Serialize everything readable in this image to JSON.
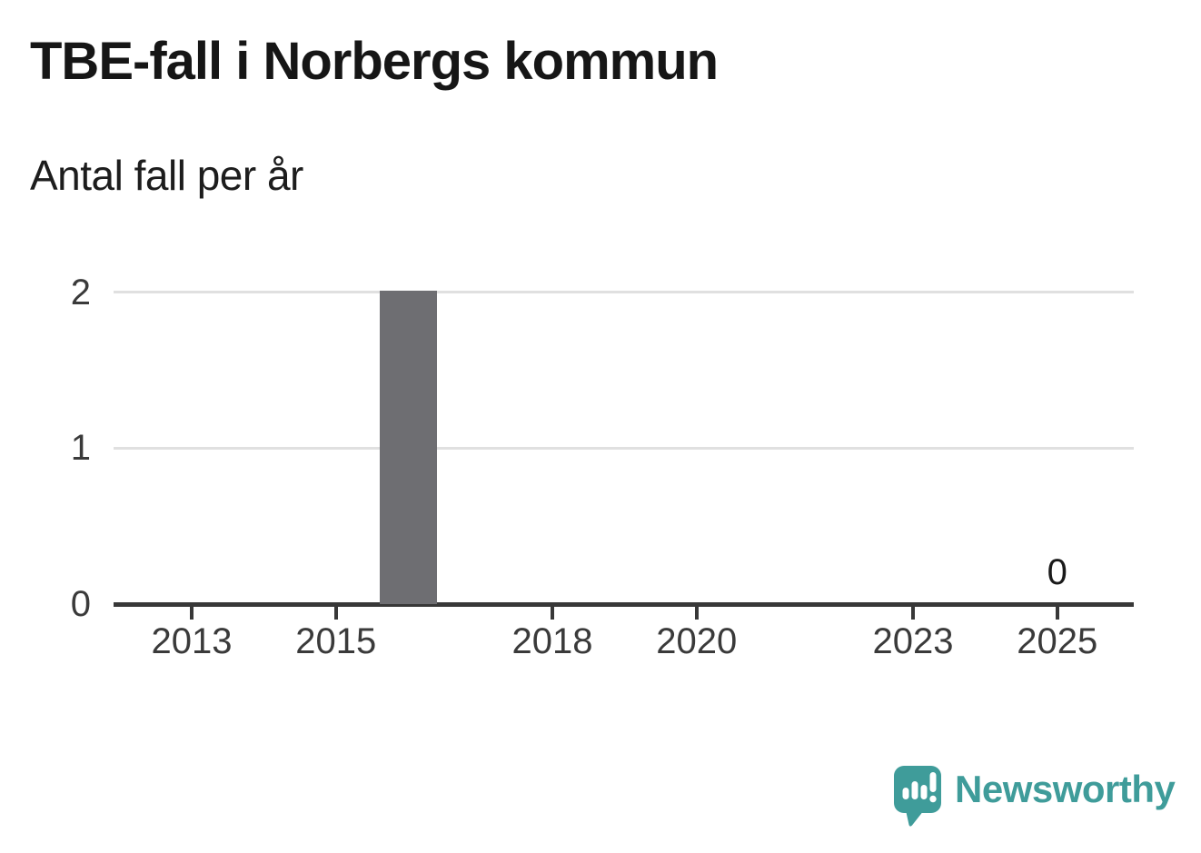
{
  "chart_data": {
    "type": "bar",
    "title": "TBE-fall i Norbergs kommun",
    "subtitle": "Antal fall per år",
    "categories": [
      "2012",
      "2013",
      "2014",
      "2015",
      "2016",
      "2017",
      "2018",
      "2019",
      "2020",
      "2021",
      "2022",
      "2023",
      "2024",
      "2025"
    ],
    "values": [
      0,
      0,
      0,
      0,
      2,
      0,
      0,
      0,
      0,
      0,
      0,
      0,
      0,
      0
    ],
    "x_tick_labels": [
      "2013",
      "2015",
      "2018",
      "2020",
      "2023",
      "2025"
    ],
    "y_ticks": [
      0,
      1,
      2
    ],
    "ylim": [
      0,
      2
    ],
    "xlabel": "",
    "ylabel": "",
    "grid": "horizontal-only",
    "legend": "none",
    "annotation": {
      "category": "2025",
      "text": "0"
    },
    "bar_color": "#6e6e72"
  },
  "colors": {
    "accent_teal": "#3f9c9a",
    "bar": "#6e6e72",
    "axis": "#383838",
    "gridline": "#e0e0e0",
    "title_text": "#161616",
    "tick_text": "#3a3a3a",
    "value_label_text": "#1a1a1a"
  },
  "branding": {
    "name": "Newsworthy",
    "logo_icon": "newsworthy-speech-bubble-bar-chart-icon"
  }
}
